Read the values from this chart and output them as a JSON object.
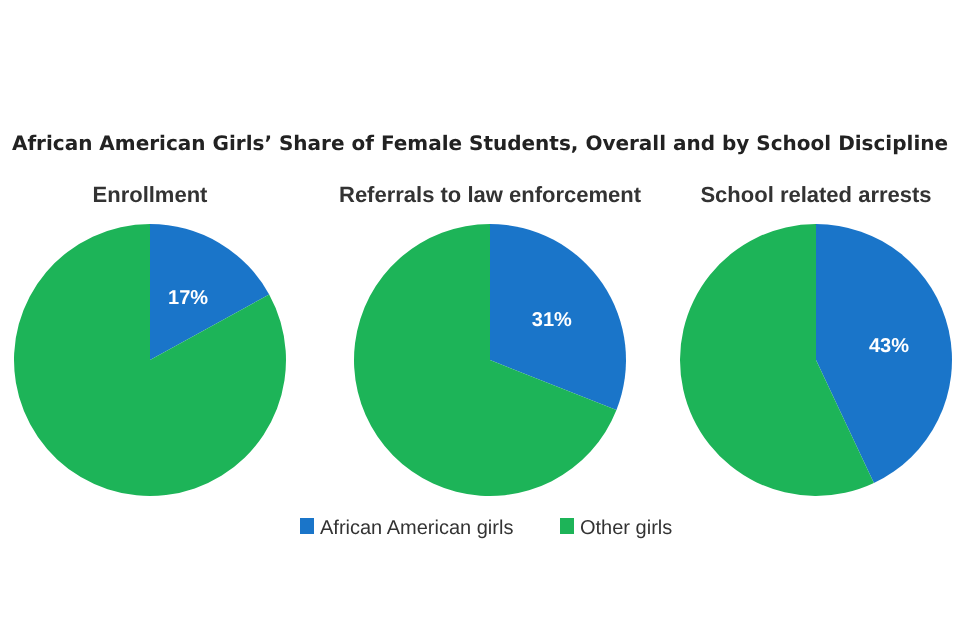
{
  "chart_data": [
    {
      "type": "pie",
      "title": "African American Girls’ Share of Female Students, Overall and by School Discipline",
      "subtitle": "Enrollment",
      "categories": [
        null,
        null
      ],
      "values": [
        17,
        83
      ],
      "colors": [
        "#1a75c9",
        "#1db458"
      ],
      "value_labels": [
        "17%",
        null
      ],
      "legend": false
    },
    {
      "type": "pie",
      "subtitle": "Referrals to law enforcement",
      "categories": [
        "African American girls",
        "Other girls"
      ],
      "values": [
        31,
        69
      ],
      "colors": [
        "#1a75c9",
        "#1db458"
      ],
      "value_labels": [
        "31%",
        null
      ],
      "legend": "bottom"
    },
    {
      "type": "pie",
      "subtitle": "School related arrests",
      "categories": [
        null,
        null
      ],
      "values": [
        43,
        57
      ],
      "colors": [
        "#1a75c9",
        "#1db458"
      ],
      "value_labels": [
        "43%",
        null
      ],
      "legend": false
    }
  ]
}
